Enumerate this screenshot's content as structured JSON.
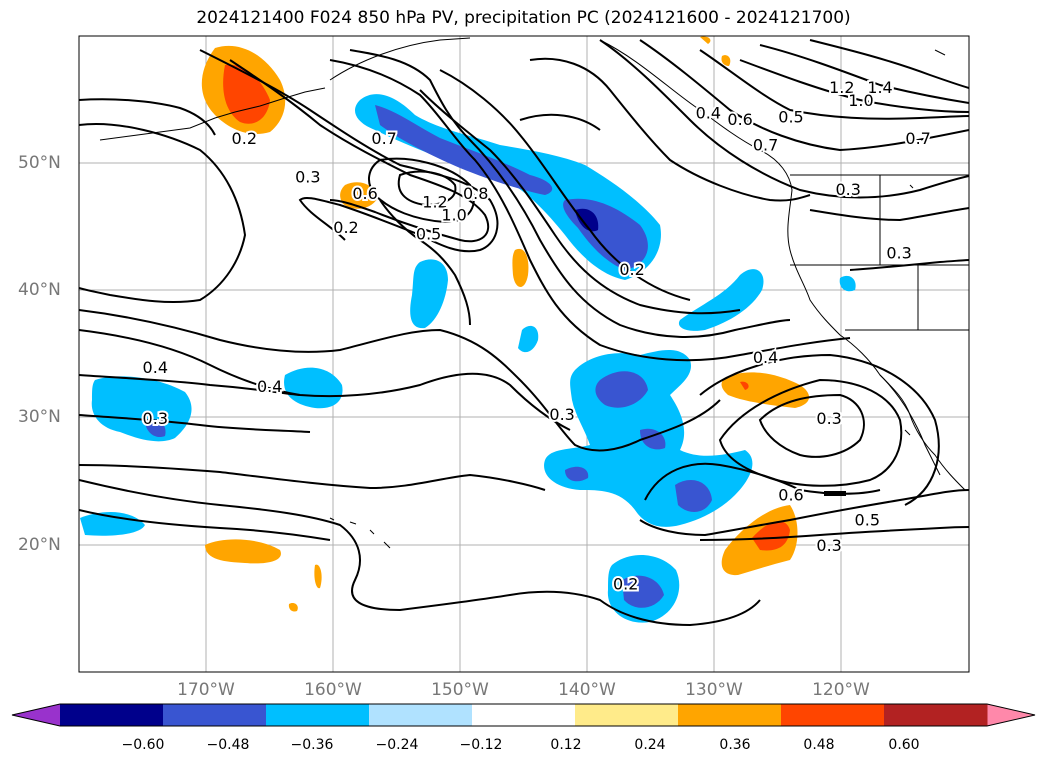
{
  "title": "2024121400 F024 850 hPa PV, precipitation PC (2024121600 - 2024121700)",
  "map": {
    "lon_labels": [
      "170°W",
      "160°W",
      "150°W",
      "140°W",
      "130°W",
      "120°W"
    ],
    "lat_labels": [
      "50°N",
      "40°N",
      "30°N",
      "20°N"
    ],
    "lon_range": [
      -180,
      -110
    ],
    "lat_range": [
      10,
      60
    ],
    "grid": true
  },
  "contour_labels": [
    {
      "text": "0.2",
      "lon": -167,
      "lat": 51.5
    },
    {
      "text": "0.3",
      "lon": -162,
      "lat": 48.5
    },
    {
      "text": "0.2",
      "lon": -159,
      "lat": 44.5
    },
    {
      "text": "0.6",
      "lon": -157.5,
      "lat": 47.2
    },
    {
      "text": "0.7",
      "lon": -156,
      "lat": 51.5
    },
    {
      "text": "1.2",
      "lon": -152,
      "lat": 46.5
    },
    {
      "text": "1.0",
      "lon": -150.5,
      "lat": 45.5
    },
    {
      "text": "0.5",
      "lon": -152.5,
      "lat": 44
    },
    {
      "text": "0.8",
      "lon": -148.8,
      "lat": 47.2
    },
    {
      "text": "0.2",
      "lon": -136.5,
      "lat": 41.2
    },
    {
      "text": "0.4",
      "lon": -130.5,
      "lat": 53.5
    },
    {
      "text": "0.6",
      "lon": -128,
      "lat": 53
    },
    {
      "text": "0.5",
      "lon": -124,
      "lat": 53.2
    },
    {
      "text": "0.7",
      "lon": -126,
      "lat": 51
    },
    {
      "text": "1.2",
      "lon": -120,
      "lat": 55.5
    },
    {
      "text": "1.4",
      "lon": -117,
      "lat": 55.5
    },
    {
      "text": "1.0",
      "lon": -118.5,
      "lat": 54.5
    },
    {
      "text": "0.7",
      "lon": -114,
      "lat": 51.5
    },
    {
      "text": "0.3",
      "lon": -119.5,
      "lat": 47.5
    },
    {
      "text": "0.3",
      "lon": -115.5,
      "lat": 42.5
    },
    {
      "text": "0.4",
      "lon": -126,
      "lat": 34.3
    },
    {
      "text": "0.3",
      "lon": -121,
      "lat": 29.5
    },
    {
      "text": "0.6",
      "lon": -124,
      "lat": 23.5
    },
    {
      "text": "0.5",
      "lon": -118,
      "lat": 21.5
    },
    {
      "text": "0.3",
      "lon": -121,
      "lat": 19.5
    },
    {
      "text": "0.3",
      "lon": -142,
      "lat": 29.8
    },
    {
      "text": "0.4",
      "lon": -174,
      "lat": 33.5
    },
    {
      "text": "0.4",
      "lon": -165,
      "lat": 32
    },
    {
      "text": "0.3",
      "lon": -174,
      "lat": 29.5
    },
    {
      "text": "0.2",
      "lon": -137,
      "lat": 16.5
    }
  ],
  "colorbar": {
    "ticks": [
      "−0.60",
      "−0.48",
      "−0.36",
      "−0.24",
      "−0.12",
      "0.12",
      "0.24",
      "0.36",
      "0.48",
      "0.60"
    ],
    "colors": [
      "#9932cc",
      "#00008b",
      "#3955d1",
      "#00bfff",
      "#b0e2ff",
      "#ffffff",
      "#ffeb8a",
      "#ffa500",
      "#ff4500",
      "#b22222",
      "#ff88aa"
    ]
  }
}
